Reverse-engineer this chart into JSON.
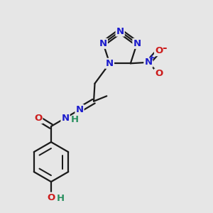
{
  "background_color": "#e6e6e6",
  "bond_color": "#1a1a1a",
  "bond_width": 1.6,
  "atom_colors": {
    "N": "#1c1ccc",
    "O": "#cc1c1c",
    "H": "#2a9060",
    "plus": "#1c1ccc"
  },
  "font_size": 9.5
}
